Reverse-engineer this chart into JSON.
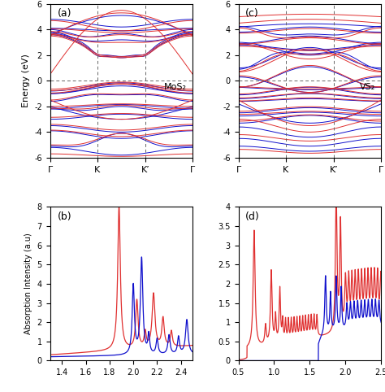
{
  "fig_width": 4.74,
  "fig_height": 4.82,
  "dpi": 100,
  "band_ylim": [
    -6,
    6
  ],
  "band_yticks": [
    -6,
    -4,
    -2,
    0,
    2,
    4,
    6
  ],
  "band_ylabel": "Energy (eV)",
  "band_xticks": [
    0.0,
    0.33,
    0.67,
    1.0
  ],
  "band_xticklabels": [
    "Γ",
    "K",
    "K’",
    "Γ"
  ],
  "mos2_label": "MoS₂",
  "vs2_label": "VS₂",
  "panel_a": "(a)",
  "panel_b": "(b)",
  "panel_c": "(c)",
  "panel_d": "(d)",
  "abs_b_ylabel": "Absorption Intensity (a.u)",
  "abs_b_xlim": [
    1.3,
    2.5
  ],
  "abs_b_ylim": [
    0,
    8
  ],
  "abs_b_yticks": [
    0,
    1,
    2,
    3,
    4,
    5,
    6,
    7,
    8
  ],
  "abs_d_xlim": [
    0.5,
    2.5
  ],
  "abs_d_ylim": [
    0,
    4
  ],
  "abs_d_yticks": [
    0,
    0.5,
    1.0,
    1.5,
    2.0,
    2.5,
    3.0,
    3.5,
    4.0
  ],
  "red_color": "#e03030",
  "blue_color": "#1010cc",
  "dashed_color": "#666666",
  "bg_color": "#ffffff"
}
